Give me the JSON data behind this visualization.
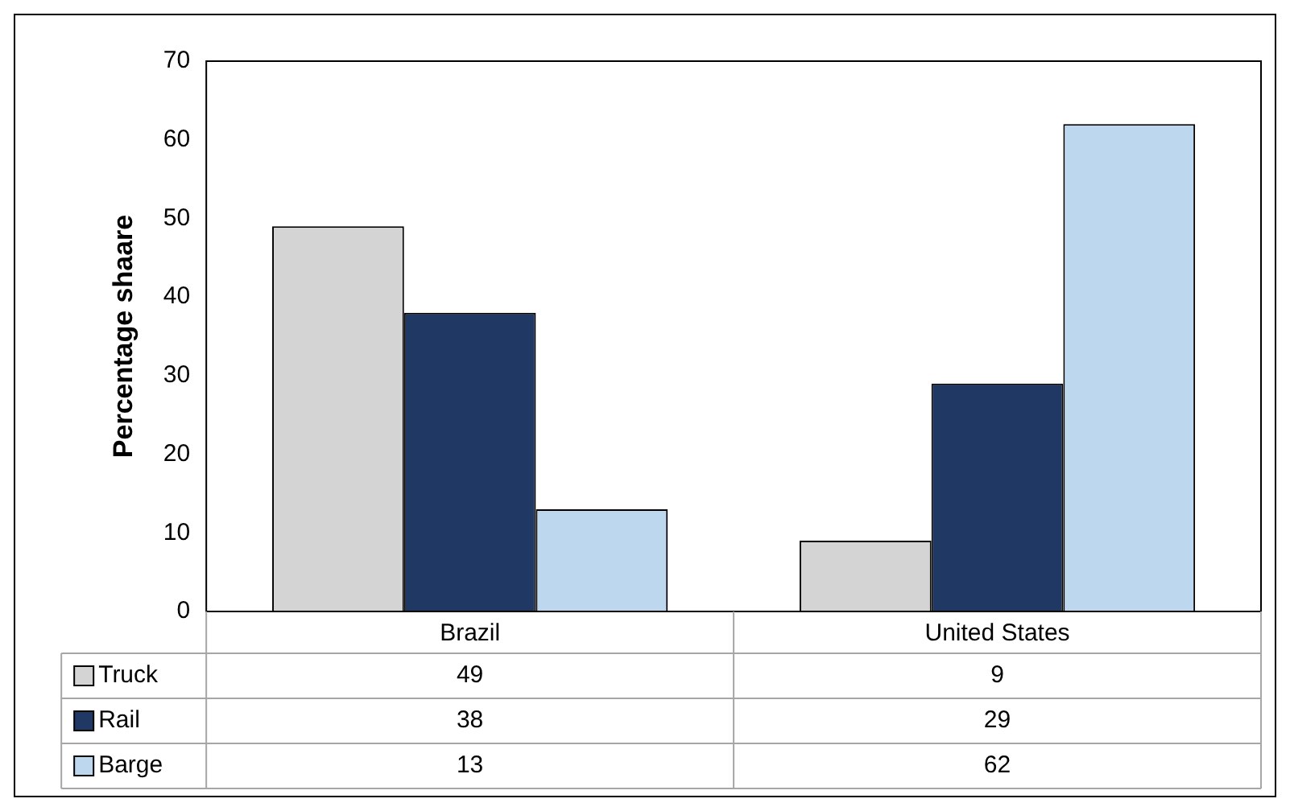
{
  "chart_data": {
    "type": "bar",
    "ylabel": "Percentage shaare",
    "categories": [
      "Brazil",
      "United States"
    ],
    "series": [
      {
        "name": "Truck",
        "color": "#d4d4d4",
        "values": [
          49,
          9
        ]
      },
      {
        "name": "Rail",
        "color": "#1f3864",
        "values": [
          38,
          29
        ]
      },
      {
        "name": "Barge",
        "color": "#bdd7ee",
        "values": [
          13,
          62
        ]
      }
    ],
    "ylim": [
      0,
      70
    ],
    "yticks": [
      0,
      10,
      20,
      30,
      40,
      50,
      60,
      70
    ],
    "grid": false,
    "legend": "bottom",
    "data_labels": true
  }
}
